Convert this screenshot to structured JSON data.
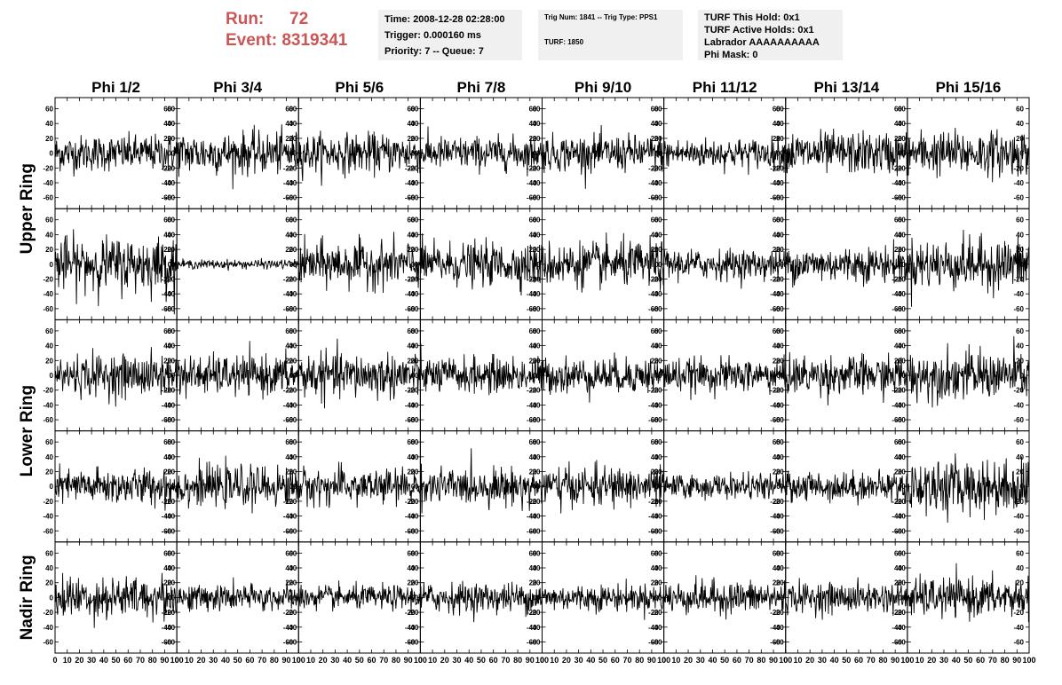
{
  "header": {
    "run_label": "Run:",
    "run_value": "72",
    "event_label": "Event:",
    "event_value": "8319341",
    "time": "Time: 2008-12-28 02:28:00",
    "trigger": "Trigger: 0.000160 ms",
    "priority": "Priority: 7 -- Queue: 7",
    "trig_num": "Trig Num: 1841 -- Trig Type: PPS1",
    "turf": "TURF: 1850",
    "turf_this_hold": "TURF This Hold: 0x1",
    "turf_active_holds": "TURF Active Holds: 0x1",
    "labrador": "Labrador AAAAAAAAAA",
    "phi_mask": "Phi Mask: 0"
  },
  "colors": {
    "header_text": "#cc5555",
    "info_bg": "#f0f0f0",
    "trace": "#000000"
  },
  "chart_data": {
    "type": "line",
    "columns": [
      "Phi 1/2",
      "Phi 3/4",
      "Phi 5/6",
      "Phi 7/8",
      "Phi 9/10",
      "Phi 11/12",
      "Phi 13/14",
      "Phi 15/16"
    ],
    "row_labels": [
      "Upper Ring",
      "Lower Ring",
      "Nadir Ring"
    ],
    "xlim": [
      0,
      100
    ],
    "ylim": [
      -75,
      75
    ],
    "x_ticks": [
      0,
      10,
      20,
      30,
      40,
      50,
      60,
      70,
      80,
      90,
      100
    ],
    "y_ticks": [
      -60,
      -40,
      -20,
      0,
      20,
      40,
      60
    ],
    "n_samples": 240,
    "amplitudes": [
      [
        12,
        14,
        13,
        11,
        12,
        10,
        14,
        15
      ],
      [
        18,
        3,
        15,
        14,
        15,
        10,
        12,
        17
      ],
      [
        14,
        13,
        15,
        12,
        12,
        11,
        13,
        16
      ],
      [
        12,
        13,
        12,
        12,
        13,
        8,
        10,
        18
      ],
      [
        14,
        9,
        8,
        10,
        9,
        11,
        10,
        13
      ]
    ]
  }
}
